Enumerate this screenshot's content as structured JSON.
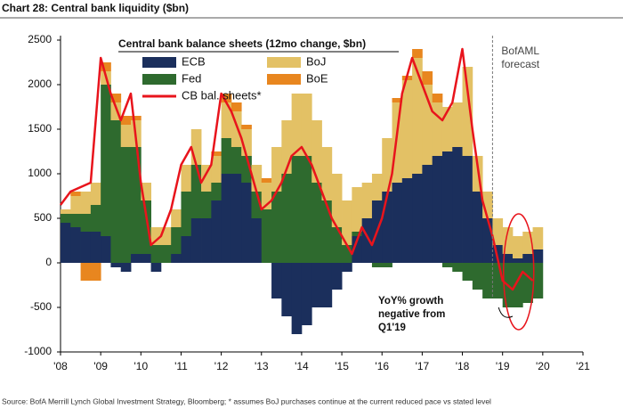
{
  "chart_data": {
    "type": "stacked-bar-line",
    "title": "Chart 28: Central bank liquidity ($bn)",
    "legend_title": "Central bank balance sheets (12mo change, $bn)",
    "source": "Source: BofA Merrill Lynch Global Investment Strategy, Bloomberg; * assumes BoJ purchases continue at the current reduced pace vs stated level",
    "forecast_label": [
      "BofAML",
      "forecast"
    ],
    "forecast_x": 2018.75,
    "annotation": [
      "YoY% growth",
      "negative from",
      "Q1'19"
    ],
    "x": [
      2008,
      2008.25,
      2008.5,
      2008.75,
      2009,
      2009.25,
      2009.5,
      2009.75,
      2010,
      2010.25,
      2010.5,
      2010.75,
      2011,
      2011.25,
      2011.5,
      2011.75,
      2012,
      2012.25,
      2012.5,
      2012.75,
      2013,
      2013.25,
      2013.5,
      2013.75,
      2014,
      2014.25,
      2014.5,
      2014.75,
      2015,
      2015.25,
      2015.5,
      2015.75,
      2016,
      2016.25,
      2016.5,
      2016.75,
      2017,
      2017.25,
      2017.5,
      2017.75,
      2018,
      2018.25,
      2018.5,
      2018.75,
      2019,
      2019.25,
      2019.5,
      2019.75
    ],
    "series": [
      {
        "name": "ECB",
        "color": "#1b2f5c",
        "values": [
          450,
          400,
          350,
          350,
          300,
          -50,
          -100,
          100,
          100,
          -100,
          0,
          100,
          300,
          500,
          500,
          700,
          1000,
          1000,
          900,
          500,
          0,
          -400,
          -600,
          -800,
          -700,
          -500,
          -500,
          -300,
          -100,
          300,
          500,
          700,
          800,
          900,
          950,
          1000,
          1100,
          1200,
          1250,
          1300,
          1200,
          800,
          500,
          200,
          100,
          50,
          100,
          150
        ]
      },
      {
        "name": "Fed",
        "color": "#2e6a2e",
        "values": [
          100,
          150,
          200,
          300,
          1700,
          1600,
          1300,
          1200,
          600,
          200,
          200,
          300,
          500,
          600,
          300,
          200,
          400,
          300,
          300,
          300,
          600,
          800,
          1000,
          1200,
          1200,
          900,
          700,
          400,
          200,
          50,
          0,
          -50,
          -50,
          0,
          0,
          0,
          0,
          0,
          -50,
          -100,
          -200,
          -300,
          -400,
          -400,
          -500,
          -500,
          -450,
          -400
        ]
      },
      {
        "name": "BoJ",
        "color": "#e3c165",
        "values": [
          50,
          200,
          250,
          250,
          150,
          200,
          250,
          300,
          200,
          200,
          200,
          200,
          300,
          400,
          300,
          300,
          400,
          400,
          300,
          300,
          300,
          500,
          600,
          700,
          700,
          700,
          600,
          600,
          500,
          500,
          400,
          300,
          600,
          900,
          1100,
          1300,
          900,
          600,
          500,
          500,
          1000,
          400,
          300,
          300,
          300,
          250,
          250,
          250
        ]
      },
      {
        "name": "BoE",
        "color": "#e8861f",
        "values": [
          0,
          50,
          -200,
          -200,
          100,
          100,
          100,
          50,
          0,
          0,
          0,
          0,
          0,
          0,
          0,
          50,
          100,
          100,
          50,
          0,
          50,
          0,
          0,
          0,
          0,
          0,
          0,
          0,
          0,
          0,
          0,
          0,
          0,
          50,
          50,
          100,
          150,
          100,
          0,
          0,
          0,
          0,
          0,
          0,
          0,
          0,
          0,
          0
        ]
      }
    ],
    "line": {
      "name": "CB bal. sheets*",
      "color": "#e8141c",
      "values": [
        650,
        800,
        850,
        900,
        2300,
        1900,
        1600,
        1900,
        900,
        200,
        300,
        600,
        1100,
        1300,
        900,
        1100,
        1900,
        1700,
        1400,
        1000,
        600,
        700,
        900,
        1200,
        1300,
        1100,
        800,
        500,
        300,
        100,
        400,
        200,
        500,
        1000,
        1900,
        2300,
        2000,
        1700,
        1600,
        1800,
        2400,
        1500,
        700,
        300,
        -200,
        -300,
        -100,
        -200
      ]
    },
    "xlim": [
      2008,
      2021
    ],
    "xticks": [
      {
        "value": 2008,
        "label": "'08"
      },
      {
        "value": 2009,
        "label": "'09"
      },
      {
        "value": 2010,
        "label": "'10"
      },
      {
        "value": 2011,
        "label": "'11"
      },
      {
        "value": 2012,
        "label": "'12"
      },
      {
        "value": 2013,
        "label": "'13"
      },
      {
        "value": 2014,
        "label": "'14"
      },
      {
        "value": 2015,
        "label": "'15"
      },
      {
        "value": 2016,
        "label": "'16"
      },
      {
        "value": 2017,
        "label": "'17"
      },
      {
        "value": 2018,
        "label": "'18"
      },
      {
        "value": 2019,
        "label": "'19"
      },
      {
        "value": 2020,
        "label": "'20"
      },
      {
        "value": 2021,
        "label": "'21"
      }
    ],
    "ylim": [
      -1000,
      2500
    ],
    "yticks": [
      -1000,
      -500,
      0,
      500,
      1000,
      1500,
      2000,
      2500
    ]
  }
}
